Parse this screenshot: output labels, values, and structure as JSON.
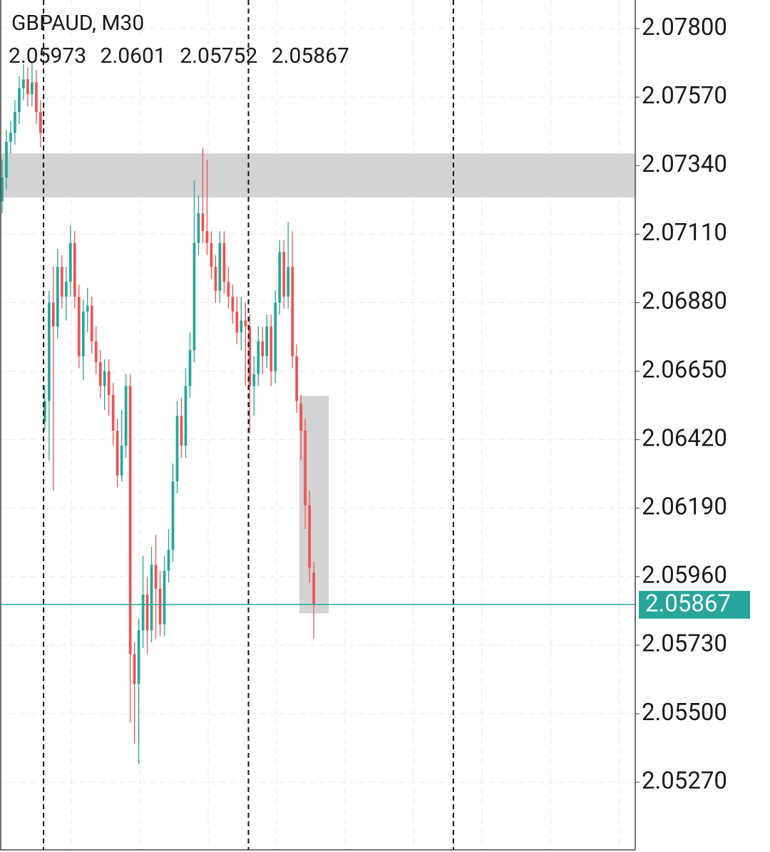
{
  "chart_data": {
    "type": "candlestick",
    "title": "GBPAUD, M30",
    "up_color": "#26a69a",
    "down_color": "#ef5350",
    "open": [
      2.0722,
      2.073,
      2.0742,
      2.0745,
      2.0752,
      2.076,
      2.0763,
      2.0758,
      2.0762,
      2.0752,
      2.0648,
      2.0655,
      2.0688,
      2.068,
      2.07,
      2.069,
      2.0695,
      2.0708,
      2.069,
      2.067,
      2.0685,
      2.0687,
      2.0675,
      2.0668,
      2.066,
      2.0665,
      2.0657,
      2.0645,
      2.063,
      2.064,
      2.066,
      2.057,
      2.056,
      2.0578,
      2.059,
      2.0578,
      2.06,
      2.0592,
      2.058,
      2.0598,
      2.0605,
      2.0628,
      2.065,
      2.064,
      2.066,
      2.0672,
      2.0708,
      2.0718,
      2.0712,
      2.0708,
      2.07,
      2.0692,
      2.0708,
      2.0695,
      2.069,
      2.0685,
      2.0678,
      2.0682,
      2.068,
      2.066,
      2.0664,
      2.0675,
      2.067,
      2.068,
      2.0665,
      2.0688,
      2.0705,
      2.069,
      2.07,
      2.067,
      2.0654,
      2.0645,
      2.062,
      2.05973
    ],
    "high": [
      2.0736,
      2.0746,
      2.0749,
      2.0756,
      2.0764,
      2.0768,
      2.0767,
      2.0769,
      2.0766,
      2.0756,
      2.066,
      2.0692,
      2.07,
      2.0706,
      2.0704,
      2.07,
      2.0714,
      2.0712,
      2.0694,
      2.0689,
      2.0693,
      2.069,
      2.068,
      2.0672,
      2.0669,
      2.0669,
      2.0661,
      2.0649,
      2.0652,
      2.0664,
      2.0664,
      2.0574,
      2.0582,
      2.0603,
      2.0596,
      2.0606,
      2.061,
      2.0598,
      2.0603,
      2.0612,
      2.0634,
      2.0655,
      2.0656,
      2.0666,
      2.0678,
      2.0729,
      2.0724,
      2.074,
      2.0736,
      2.0712,
      2.0704,
      2.0712,
      2.0712,
      2.07,
      2.0694,
      2.069,
      2.069,
      2.0688,
      2.0684,
      2.067,
      2.068,
      2.068,
      2.0684,
      2.0684,
      2.0692,
      2.0709,
      2.0709,
      2.0715,
      2.0712,
      2.0674,
      2.0657,
      2.0649,
      2.0625,
      2.0601
    ],
    "low": [
      2.0718,
      2.0726,
      2.0738,
      2.0741,
      2.0748,
      2.0756,
      2.0754,
      2.0754,
      2.0748,
      2.074,
      2.0645,
      2.0635,
      2.0625,
      2.0676,
      2.0686,
      2.0682,
      2.069,
      2.0686,
      2.0666,
      2.0662,
      2.0678,
      2.0671,
      2.0664,
      2.0656,
      2.0652,
      2.065,
      2.064,
      2.0626,
      2.0628,
      2.0636,
      2.0547,
      2.054,
      2.0533,
      2.0572,
      2.057,
      2.0574,
      2.0575,
      2.0576,
      2.0576,
      2.0594,
      2.0601,
      2.0624,
      2.0636,
      2.0636,
      2.0656,
      2.0668,
      2.0704,
      2.0708,
      2.0704,
      2.0696,
      2.0688,
      2.0688,
      2.0691,
      2.0686,
      2.0681,
      2.0674,
      2.0672,
      2.066,
      2.0644,
      2.065,
      2.066,
      2.0664,
      2.0666,
      2.066,
      2.0661,
      2.0684,
      2.0686,
      2.0686,
      2.0666,
      2.0651,
      2.0635,
      2.0612,
      2.0594,
      2.05752
    ],
    "close": [
      2.073,
      2.0742,
      2.0745,
      2.0752,
      2.076,
      2.0763,
      2.0758,
      2.0762,
      2.0752,
      2.0745,
      2.0655,
      2.0688,
      2.068,
      2.07,
      2.069,
      2.0695,
      2.0708,
      2.069,
      2.067,
      2.0685,
      2.0687,
      2.0675,
      2.0668,
      2.066,
      2.0665,
      2.0657,
      2.0645,
      2.063,
      2.064,
      2.066,
      2.057,
      2.056,
      2.0578,
      2.059,
      2.0578,
      2.06,
      2.0592,
      2.058,
      2.0598,
      2.0605,
      2.0628,
      2.065,
      2.064,
      2.066,
      2.0672,
      2.0708,
      2.0718,
      2.0712,
      2.0708,
      2.07,
      2.0692,
      2.0708,
      2.0695,
      2.069,
      2.0685,
      2.0678,
      2.0682,
      2.068,
      2.066,
      2.0664,
      2.0675,
      2.067,
      2.068,
      2.0665,
      2.0688,
      2.0705,
      2.069,
      2.07,
      2.067,
      2.0655,
      2.0645,
      2.062,
      2.0599,
      2.05867
    ],
    "xlim": [
      -0.5,
      148.3
    ],
    "ylim": [
      2.05043,
      2.07896
    ],
    "yticks": [
      {
        "value": 2.078,
        "label": "2.07800"
      },
      {
        "value": 2.0757,
        "label": "2.07570"
      },
      {
        "value": 2.0734,
        "label": "2.07340"
      },
      {
        "value": 2.0711,
        "label": "2.07110"
      },
      {
        "value": 2.0688,
        "label": "2.06880"
      },
      {
        "value": 2.0665,
        "label": "2.06650"
      },
      {
        "value": 2.0642,
        "label": "2.06420"
      },
      {
        "value": 2.0619,
        "label": "2.06190"
      },
      {
        "value": 2.0596,
        "label": "2.05960"
      },
      {
        "value": 2.0573,
        "label": "2.05730"
      },
      {
        "value": 2.055,
        "label": "2.05500"
      },
      {
        "value": 2.0527,
        "label": "2.05270"
      }
    ],
    "grid": true,
    "separators": [
      9.7,
      57.7,
      105.7
    ],
    "zones": [
      {
        "ylim": [
          2.07233,
          2.07381
        ]
      },
      {
        "ylim": [
          2.05837,
          2.06567
        ],
        "xlim": [
          69.6,
          76.5
        ]
      }
    ],
    "zone_color": "#d3d3d3",
    "price_color": "#26a69a"
  }
}
